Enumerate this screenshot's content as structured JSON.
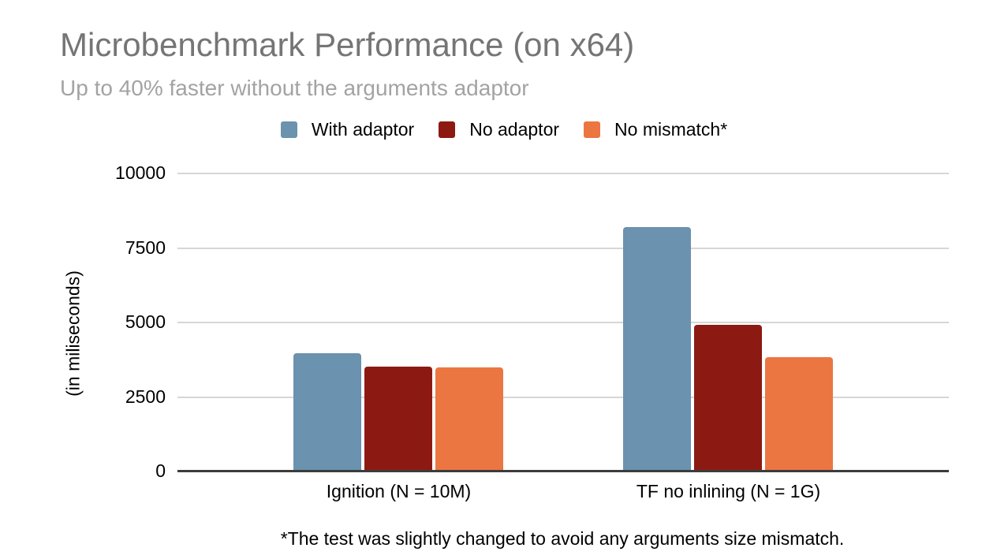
{
  "chart_data": {
    "type": "bar",
    "title": "Microbenchmark Performance (on x64)",
    "subtitle": "Up to 40% faster without the arguments adaptor",
    "categories": [
      "Ignition (N = 10M)",
      "TF no inlining (N = 1G)"
    ],
    "series": [
      {
        "name": "With adaptor",
        "color": "#6b92ae",
        "values": [
          3975,
          8200
        ]
      },
      {
        "name": "No adaptor",
        "color": "#8d1a12",
        "values": [
          3510,
          4925
        ]
      },
      {
        "name": "No mismatch*",
        "color": "#eb7642",
        "values": [
          3480,
          3840
        ]
      }
    ],
    "xlabel": "",
    "ylabel": "(in miliseconds)",
    "yticks": [
      0,
      2500,
      5000,
      7500,
      10000
    ],
    "ylim": [
      0,
      10000
    ],
    "grid": true,
    "legend_position": "top",
    "footnote": "*The test was slightly changed to avoid any arguments size mismatch."
  }
}
